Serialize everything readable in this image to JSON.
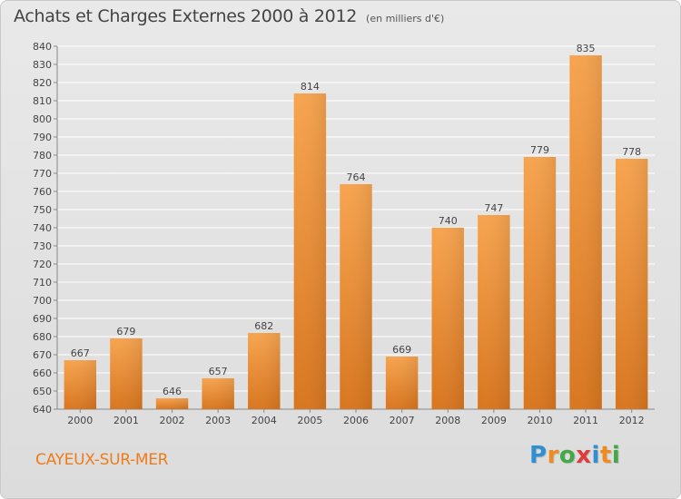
{
  "header": {
    "title": "Achats et Charges Externes 2000 à 2012",
    "unit_note": "(en milliers d'€)"
  },
  "footer": {
    "town": "CAYEUX-SUR-MER",
    "logo_letters": [
      "P",
      "r",
      "o",
      "x",
      "i",
      "t",
      "i"
    ],
    "logo_colors": [
      "#2f8fd0",
      "#f08a1c",
      "#44a844",
      "#e03c3c",
      "#2f8fd0",
      "#f08a1c",
      "#44a844"
    ]
  },
  "colors": {
    "bar_light": "#f7a44f",
    "bar_dark": "#d9761f",
    "grid": "#ffffff",
    "axis": "#888888",
    "text": "#444444"
  },
  "chart_data": {
    "type": "bar",
    "title": "Achats et Charges Externes 2000 à 2012",
    "subtitle": "(en milliers d'€)",
    "xlabel": "",
    "ylabel": "",
    "categories": [
      "2000",
      "2001",
      "2002",
      "2003",
      "2004",
      "2005",
      "2006",
      "2007",
      "2008",
      "2009",
      "2010",
      "2011",
      "2012"
    ],
    "values": [
      667,
      679,
      646,
      657,
      682,
      814,
      764,
      669,
      740,
      747,
      779,
      835,
      778
    ],
    "ylim": [
      640,
      840
    ],
    "ytick_step": 10,
    "grid": true,
    "legend": "none",
    "data_labels": true
  }
}
